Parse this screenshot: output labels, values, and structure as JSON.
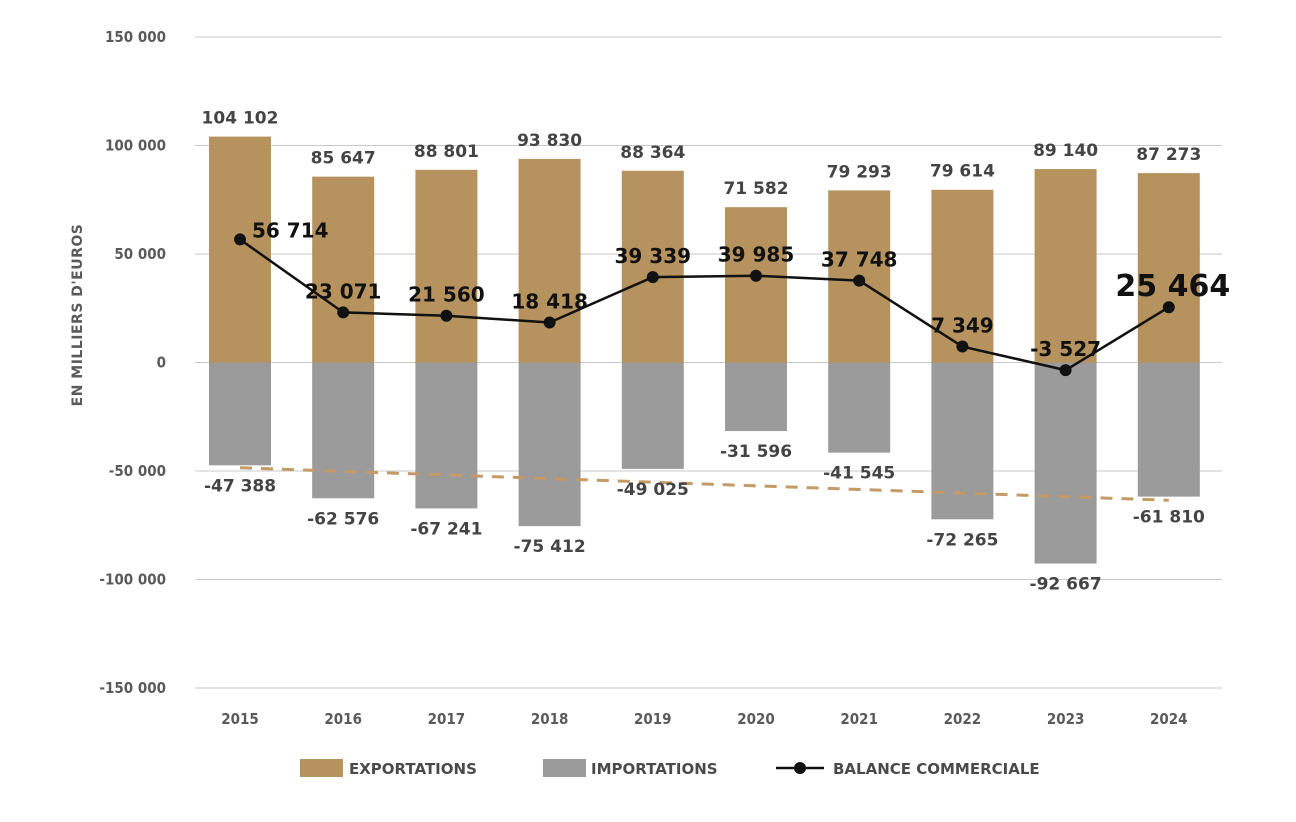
{
  "chart_data": {
    "type": "bar",
    "title": "",
    "xlabel": "",
    "ylabel": "EN MILLIERS D'EUROS",
    "ylim": [
      -150000,
      150000
    ],
    "yticks": [
      150000,
      100000,
      50000,
      0,
      -50000,
      -100000,
      -150000
    ],
    "ytick_labels": [
      "150 000",
      "100 000",
      "50 000",
      "0",
      "-50 000",
      "-100 000",
      "-150 000"
    ],
    "grid": true,
    "legend_position": "bottom",
    "categories": [
      "2015",
      "2016",
      "2017",
      "2018",
      "2019",
      "2020",
      "2021",
      "2022",
      "2023",
      "2024"
    ],
    "series": [
      {
        "name": "EXPORTATIONS",
        "kind": "bar",
        "color": "#b5925e",
        "values": [
          104102,
          85647,
          88801,
          93830,
          88364,
          71582,
          79293,
          79614,
          89140,
          87273
        ],
        "labels": [
          "104 102",
          "85 647",
          "88 801",
          "93 830",
          "88 364",
          "71 582",
          "79 293",
          "79 614",
          "89 140",
          "87 273"
        ]
      },
      {
        "name": "IMPORTATIONS",
        "kind": "bar",
        "color": "#9b9b9b",
        "values": [
          -47388,
          -62576,
          -67241,
          -75412,
          -49025,
          -31596,
          -41545,
          -72265,
          -92667,
          -61810
        ],
        "labels": [
          "-47 388",
          "-62 576",
          "-67 241",
          "-75 412",
          "-49 025",
          "-31 596",
          "-41 545",
          "-72 265",
          "-92 667",
          "-61 810"
        ]
      },
      {
        "name": "BALANCE COMMERCIALE",
        "kind": "line",
        "color": "#111111",
        "values": [
          56714,
          23071,
          21560,
          18418,
          39339,
          39985,
          37748,
          7349,
          -3527,
          25464
        ],
        "labels": [
          "56 714",
          "23 071",
          "21 560",
          "18 418",
          "39 339",
          "39 985",
          "37 748",
          "7 349",
          "-3 527",
          "25 464"
        ]
      }
    ],
    "trendline": {
      "of": "IMPORTATIONS",
      "style": "dashed",
      "color": "#c49a66",
      "start": -48500,
      "end": -63500
    },
    "legend": [
      {
        "label": "EXPORTATIONS",
        "swatch": "bar",
        "color": "#b5925e"
      },
      {
        "label": "IMPORTATIONS",
        "swatch": "bar",
        "color": "#9b9b9b"
      },
      {
        "label": "BALANCE COMMERCIALE",
        "swatch": "line-marker",
        "color": "#111111"
      }
    ]
  }
}
